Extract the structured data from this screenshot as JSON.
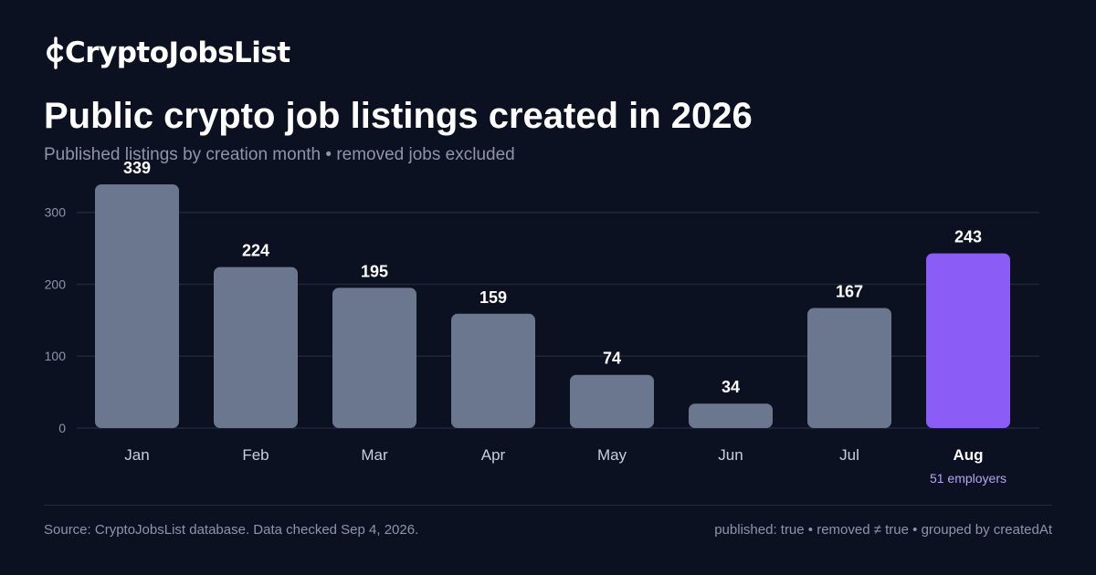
{
  "brand": {
    "name": "CryptoJobsList"
  },
  "header": {
    "title": "Public crypto job listings created in 2026",
    "subtitle": "Published listings by creation month • removed jobs excluded"
  },
  "colors": {
    "background": "#0c1121",
    "bar": "#6b778f",
    "highlight_bar": "#8b5cf6",
    "gridline": "#1f2738",
    "muted_text": "#8d96a8"
  },
  "chart_data": {
    "type": "bar",
    "categories": [
      "Jan",
      "Feb",
      "Mar",
      "Apr",
      "May",
      "Jun",
      "Jul",
      "Aug"
    ],
    "values": [
      339,
      224,
      195,
      159,
      74,
      34,
      167,
      243
    ],
    "ylim": [
      0,
      339
    ],
    "yticks": [
      0,
      100,
      200,
      300
    ],
    "grid": true,
    "highlight": {
      "category": "Aug",
      "note": "51 employers"
    }
  },
  "footer": {
    "source": "Source: CryptoJobsList database. Data checked Sep 4, 2026.",
    "filters": "published: true • removed ≠ true • grouped by createdAt"
  }
}
